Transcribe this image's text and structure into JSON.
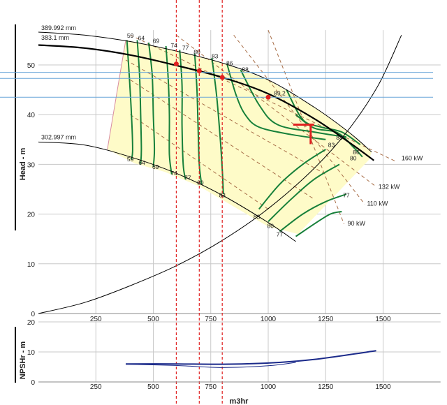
{
  "chart_data": [
    {
      "type": "line",
      "title": "",
      "xlabel": "",
      "ylabel": "Head - m",
      "xlim": [
        0,
        1750
      ],
      "ylim": [
        0,
        57
      ],
      "x_ticks": [
        250,
        500,
        750,
        1000,
        1250,
        1500
      ],
      "y_ticks": [
        0,
        10,
        20,
        30,
        40,
        50
      ],
      "grid": true,
      "impeller_curves": [
        {
          "name": "389.992 mm",
          "label_at": [
            0,
            56.6
          ],
          "points": [
            [
              0,
              56.6
            ],
            [
              200,
              56
            ],
            [
              400,
              54.7
            ],
            [
              600,
              52.8
            ],
            [
              800,
              50.4
            ],
            [
              1000,
              47
            ],
            [
              1200,
              41.5
            ],
            [
              1350,
              36.5
            ],
            [
              1450,
              32.5
            ]
          ]
        },
        {
          "name": "383.1 mm",
          "label_at": [
            0,
            54.6
          ],
          "points": [
            [
              0,
              54
            ],
            [
              200,
              53.4
            ],
            [
              400,
              52
            ],
            [
              600,
              49.9
            ],
            [
              800,
              47.5
            ],
            [
              1000,
              44.2
            ],
            [
              1200,
              39.2
            ],
            [
              1350,
              34.5
            ],
            [
              1460,
              30.8
            ]
          ]
        },
        {
          "name": "302.997 mm",
          "label_at": [
            0,
            34.6
          ],
          "points": [
            [
              0,
              34.5
            ],
            [
              200,
              33.9
            ],
            [
              400,
              31.5
            ],
            [
              600,
              28.2
            ],
            [
              800,
              23.8
            ],
            [
              1000,
              18.3
            ],
            [
              1120,
              14.5
            ]
          ]
        }
      ],
      "efficiency_labels": [
        {
          "text": "59",
          "x": 400,
          "y": 55.5
        },
        {
          "text": "64",
          "x": 448,
          "y": 55
        },
        {
          "text": "69",
          "x": 512,
          "y": 54.4
        },
        {
          "text": "74",
          "x": 590,
          "y": 53.5
        },
        {
          "text": "77",
          "x": 640,
          "y": 53
        },
        {
          "text": "80",
          "x": 690,
          "y": 52.2
        },
        {
          "text": "83",
          "x": 768,
          "y": 51.3
        },
        {
          "text": "86",
          "x": 832,
          "y": 49.9
        },
        {
          "text": "88",
          "x": 900,
          "y": 48.7
        },
        {
          "text": "89.2",
          "x": 1050,
          "y": 43.9
        },
        {
          "text": "88",
          "x": 1310,
          "y": 35
        },
        {
          "text": "83",
          "x": 1275,
          "y": 33.5
        },
        {
          "text": "86",
          "x": 1383,
          "y": 32
        },
        {
          "text": "80",
          "x": 1370,
          "y": 30.8
        },
        {
          "text": "59",
          "x": 400,
          "y": 30.6
        },
        {
          "text": "64",
          "x": 450,
          "y": 29.9
        },
        {
          "text": "69",
          "x": 510,
          "y": 29.1
        },
        {
          "text": "74",
          "x": 590,
          "y": 27.8
        },
        {
          "text": "77",
          "x": 650,
          "y": 26.9
        },
        {
          "text": "80",
          "x": 705,
          "y": 25.9
        },
        {
          "text": "83",
          "x": 800,
          "y": 23.4
        },
        {
          "text": "83",
          "x": 950,
          "y": 19
        },
        {
          "text": "80",
          "x": 1010,
          "y": 17.2
        },
        {
          "text": "77",
          "x": 1050,
          "y": 15.5
        },
        {
          "text": "77",
          "x": 1340,
          "y": 23.4
        }
      ],
      "power_labels": [
        {
          "text": "160 kW",
          "x": 1580,
          "y": 30.8
        },
        {
          "text": "132 kW",
          "x": 1480,
          "y": 25.1
        },
        {
          "text": "110 kW",
          "x": 1430,
          "y": 21.7
        },
        {
          "text": "90 kW",
          "x": 1345,
          "y": 17.7
        }
      ],
      "system_curve": [
        [
          0,
          0
        ],
        [
          200,
          2.2
        ],
        [
          400,
          5.6
        ],
        [
          600,
          9.6
        ],
        [
          800,
          14.7
        ],
        [
          1000,
          21.1
        ],
        [
          1200,
          29.2
        ],
        [
          1350,
          37
        ],
        [
          1480,
          46
        ],
        [
          1580,
          56
        ]
      ],
      "operating_points": [
        {
          "x": 600,
          "y": 50.2
        },
        {
          "x": 700,
          "y": 48.8
        },
        {
          "x": 800,
          "y": 47.5
        },
        {
          "x": 1000,
          "y": 43.5
        }
      ],
      "duty_point": {
        "x": 1200,
        "y": 38
      },
      "vertical_markers": [
        600,
        700,
        800
      ],
      "horizontal_markers": [
        48.5,
        47.3,
        43.5
      ]
    },
    {
      "type": "line",
      "xlabel": "m3hr",
      "ylabel": "NPSHr - m",
      "xlim": [
        0,
        1750
      ],
      "ylim": [
        0,
        20
      ],
      "x_ticks": [
        250,
        500,
        750,
        1000,
        1250,
        1500
      ],
      "y_ticks": [
        0,
        10,
        20
      ],
      "series": [
        {
          "points": [
            [
              380,
              6
            ],
            [
              600,
              6
            ],
            [
              800,
              5.9
            ],
            [
              1000,
              6.3
            ],
            [
              1200,
              7.5
            ],
            [
              1470,
              10.4
            ]
          ]
        },
        {
          "points": [
            [
              380,
              5.9
            ],
            [
              600,
              5.5
            ],
            [
              800,
              4.8
            ],
            [
              1000,
              5.4
            ],
            [
              1120,
              6.5
            ]
          ]
        }
      ]
    }
  ]
}
